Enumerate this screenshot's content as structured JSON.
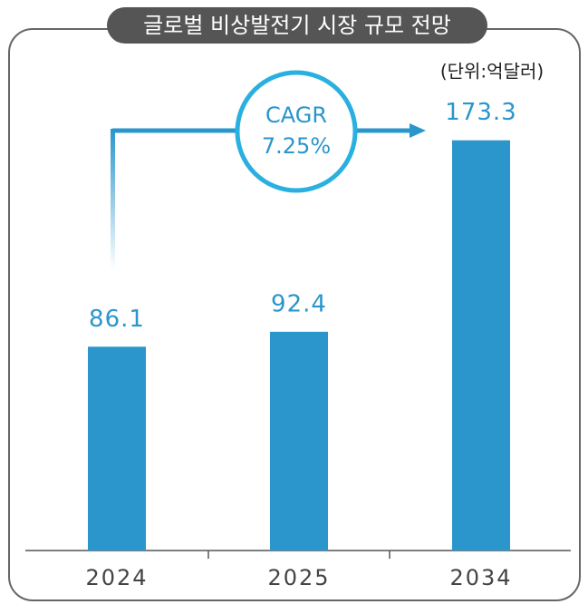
{
  "chart_data": {
    "type": "bar",
    "title": "글로벌 비상발전기 시장 규모 전망",
    "unit": "(단위:억달러)",
    "annotation": {
      "label": "CAGR",
      "value": "7.25%"
    },
    "categories": [
      "2024",
      "2025",
      "2034"
    ],
    "values": [
      86.1,
      92.4,
      173.3
    ],
    "color": "#2a96cc",
    "ylim": [
      0,
      200
    ]
  }
}
